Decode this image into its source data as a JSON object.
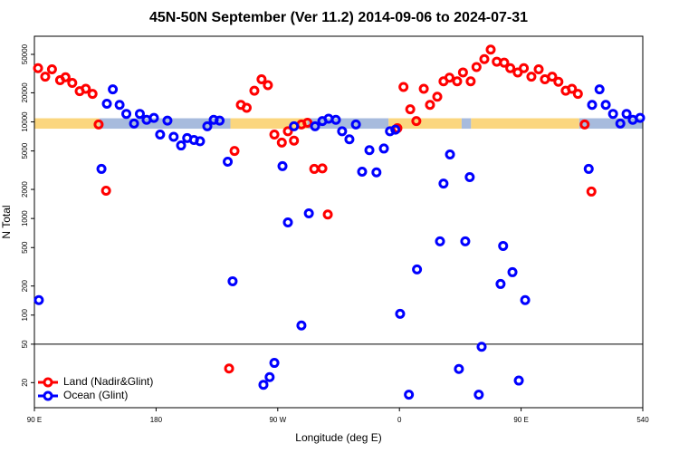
{
  "chart_data": {
    "type": "scatter",
    "title": "45N-50N September (Ver 11.2)   2014-09-06 to 2024-07-31",
    "x_label": "Longitude (deg E)",
    "y_label": "N Total",
    "log_y": true,
    "legend": "lower left",
    "xlim": [
      90,
      540
    ],
    "ylim": [
      11,
      77000
    ],
    "xticks": [
      {
        "value": 90,
        "label": "90 E"
      },
      180,
      {
        "value": 270,
        "label": "90 W"
      },
      {
        "value": 360,
        "label": "0"
      },
      {
        "value": 450,
        "label": "90 E"
      },
      540
    ],
    "yticks": [
      20,
      50,
      100,
      200,
      500,
      1000,
      2000,
      5000,
      10000,
      20000,
      50000
    ],
    "hline": 50,
    "band": {
      "ylim": [
        8500,
        10900
      ],
      "segments": [
        {
          "x": [
            90,
            138
          ],
          "color": "#fbd67e"
        },
        {
          "x": [
            138,
            235
          ],
          "color": "#a7bbdd"
        },
        {
          "x": [
            235,
            292
          ],
          "color": "#fbd67e"
        },
        {
          "x": [
            292,
            352
          ],
          "color": "#a7bbdd"
        },
        {
          "x": [
            352,
            406
          ],
          "color": "#fbd67e"
        },
        {
          "x": [
            406,
            413
          ],
          "color": "#a7bbdd"
        },
        {
          "x": [
            413,
            493
          ],
          "color": "#fbd67e"
        },
        {
          "x": [
            493,
            540
          ],
          "color": "#a7bbdd"
        }
      ]
    },
    "series": [
      {
        "name": "Land (Nadir&Glint)",
        "color": "#ff0000",
        "x": [
          92.7,
          98,
          103,
          109,
          113,
          118,
          123.5,
          128,
          133,
          137.5,
          143,
          234,
          238,
          242.7,
          247,
          252.7,
          258,
          262.7,
          267.5,
          273,
          277.5,
          282,
          287.5,
          292,
          297,
          303,
          307,
          358.5,
          363,
          368,
          372.5,
          378,
          382.6,
          388,
          392.6,
          397,
          402.7,
          407,
          412.7,
          417,
          422.8,
          427.5,
          432,
          437.5,
          442,
          447.5,
          452,
          457.6,
          463,
          467.6,
          473,
          477.6,
          483,
          487.6,
          492,
          497,
          502
        ],
        "values": [
          36000,
          29400,
          35000,
          27000,
          29000,
          25300,
          20800,
          22000,
          19500,
          9400,
          1940,
          28,
          5000,
          15000,
          14000,
          21000,
          27600,
          24000,
          7400,
          6100,
          8000,
          6400,
          9400,
          9800,
          3260,
          3300,
          1100,
          8600,
          23000,
          13500,
          10200,
          22000,
          15000,
          18200,
          26300,
          28700,
          26300,
          32500,
          26300,
          37000,
          44600,
          56000,
          42000,
          41000,
          36000,
          32500,
          36000,
          29400,
          35000,
          27600,
          29400,
          26000,
          21000,
          22000,
          19500,
          9400,
          1900
        ]
      },
      {
        "name": "Ocean (Glint)",
        "color": "#0000ff",
        "x": [
          93.3,
          139.6,
          143.6,
          148,
          153,
          158,
          163.7,
          168,
          173,
          178.4,
          183,
          188.4,
          193,
          198.5,
          203,
          208,
          212.5,
          217.9,
          222.6,
          227,
          233,
          236.6,
          259.4,
          264,
          267.5,
          273.5,
          277.5,
          282,
          287.5,
          293,
          297.6,
          303,
          307.6,
          313,
          317.6,
          323,
          327.8,
          332.4,
          337.8,
          343,
          348.5,
          353,
          357,
          360.5,
          367,
          373,
          390,
          392.6,
          397.4,
          404,
          408.7,
          412,
          418.7,
          420.8,
          434.8,
          436.7,
          443.6,
          448.3,
          453,
          500,
          502.5,
          508,
          512.6,
          518,
          523.4,
          528,
          532.6,
          538
        ],
        "values": [
          143,
          3260,
          15400,
          21700,
          15000,
          12100,
          9600,
          12100,
          10500,
          11000,
          7400,
          10300,
          7000,
          5700,
          6800,
          6500,
          6300,
          9000,
          10500,
          10300,
          3870,
          224,
          19,
          22.8,
          32,
          3480,
          910,
          9000,
          78,
          1130,
          9000,
          10200,
          10800,
          10500,
          8000,
          6600,
          9400,
          3050,
          5100,
          3000,
          5300,
          8000,
          8300,
          103,
          15,
          297,
          580,
          2300,
          4600,
          27.7,
          580,
          2680,
          15,
          47,
          210,
          520,
          278,
          21,
          143,
          3260,
          15000,
          21700,
          15000,
          12100,
          9600,
          12100,
          10500,
          11000
        ]
      }
    ]
  }
}
